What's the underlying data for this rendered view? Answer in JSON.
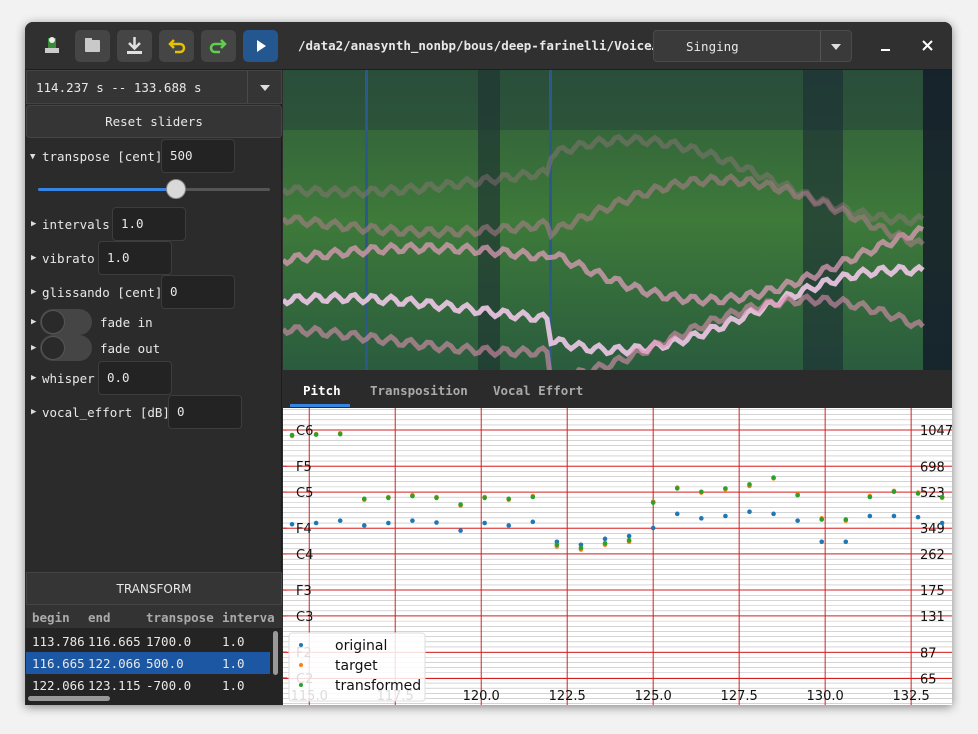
{
  "header": {
    "path": "/data2/anasynth_nonbp/bous/deep-farinelli/Voice…",
    "mode": "Singing"
  },
  "controls": {
    "time_range": "114.237 s -- 133.688 s",
    "reset": "Reset sliders",
    "transpose": {
      "label": "transpose [cent]",
      "value": "500"
    },
    "intervals": {
      "label": "intervals",
      "value": "1.0"
    },
    "vibrato": {
      "label": "vibrato",
      "value": "1.0"
    },
    "glissando": {
      "label": "glissando [cent]",
      "value": "0"
    },
    "fade_in": {
      "label": "fade in"
    },
    "fade_out": {
      "label": "fade out"
    },
    "whisper": {
      "label": "whisper",
      "value": "0.0"
    },
    "vocal_effort": {
      "label": "vocal_effort [dB]",
      "value": "0"
    },
    "transform": "TRANSFORM"
  },
  "table": {
    "headers": [
      "begin",
      "end",
      "transpose",
      "interva"
    ],
    "rows": [
      [
        "113.786",
        "116.665",
        "1700.0",
        "1.0"
      ],
      [
        "116.665",
        "122.066",
        "500.0",
        "1.0"
      ],
      [
        "122.066",
        "123.115",
        "-700.0",
        "1.0"
      ]
    ]
  },
  "tabs": [
    "Pitch",
    "Transposition",
    "Vocal Effort"
  ],
  "chart_data": {
    "type": "scatter",
    "log_y": true,
    "legend": "lower left",
    "grid": true,
    "x": [
      114.5,
      115.2,
      115.9,
      116.6,
      117.3,
      118.0,
      118.7,
      119.4,
      120.1,
      120.8,
      121.5,
      122.2,
      122.9,
      123.6,
      124.3,
      125.0,
      125.7,
      126.4,
      127.1,
      127.8,
      128.5,
      129.2,
      129.9,
      130.6,
      131.3,
      132.0,
      132.7,
      133.4
    ],
    "series": [
      {
        "name": "original",
        "color": "#1f77b4",
        "values": [
          365,
          370,
          380,
          360,
          370,
          380,
          372,
          340,
          370,
          360,
          375,
          300,
          290,
          310,
          320,
          350,
          410,
          390,
          400,
          420,
          410,
          380,
          300,
          300,
          400,
          400,
          395,
          370
        ]
      },
      {
        "name": "target",
        "color": "#ff7f0e",
        "values": [
          980,
          1000,
          1010,
          480,
          495,
          505,
          495,
          450,
          495,
          480,
          500,
          285,
          275,
          290,
          300,
          470,
          550,
          520,
          540,
          560,
          610,
          510,
          390,
          380,
          500,
          530,
          520,
          490
        ]
      },
      {
        "name": "transformed",
        "color": "#2ca02c",
        "values": [
          990,
          995,
          1000,
          485,
          490,
          500,
          490,
          455,
          490,
          485,
          495,
          290,
          280,
          295,
          305,
          465,
          545,
          525,
          545,
          570,
          615,
          505,
          385,
          385,
          495,
          525,
          515,
          495
        ]
      }
    ],
    "xlim": [
      114.237,
      133.688
    ],
    "ylim": [
      48.3,
      1340
    ],
    "y2lim": [
      48.3,
      1340
    ],
    "xticks": [
      {
        "value": 115,
        "label": "115.0"
      },
      117.5,
      {
        "value": 120,
        "label": "120.0"
      },
      122.5,
      {
        "value": 125,
        "label": "125.0"
      },
      127.5,
      {
        "value": 130,
        "label": "130.0"
      },
      132.5
    ],
    "yticks": [
      {
        "value": 1046.5,
        "label": "C6"
      },
      {
        "value": 698.46,
        "label": "F5"
      },
      {
        "value": 523.25,
        "label": "C5"
      },
      {
        "value": 349.23,
        "label": "F4"
      },
      {
        "value": 261.63,
        "label": "C4"
      },
      {
        "value": 174.61,
        "label": "F3"
      },
      {
        "value": 130.81,
        "label": "C3"
      },
      {
        "value": 87.31,
        "label": "F2"
      },
      {
        "value": 65.41,
        "label": "C2"
      }
    ],
    "y2ticks": [
      1047,
      698,
      523,
      349,
      262,
      175,
      131,
      87,
      65
    ]
  }
}
